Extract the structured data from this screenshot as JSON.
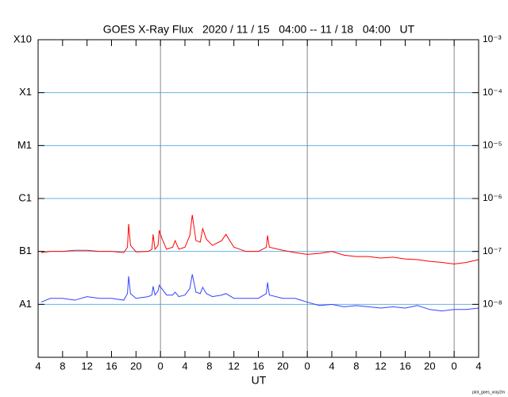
{
  "chart_data": {
    "type": "line",
    "title": "GOES X-Ray Flux   2020 / 11 / 15   04:00 -- 11 / 18   04:00   UT",
    "xlabel": "UT",
    "credit": "plot_goes_xray2m",
    "yscale": "log",
    "grid": true,
    "xlim": [
      0,
      72
    ],
    "xticks": [
      {
        "value": 0,
        "label": "4"
      },
      {
        "value": 4,
        "label": "8"
      },
      {
        "value": 8,
        "label": "12"
      },
      {
        "value": 12,
        "label": "16"
      },
      {
        "value": 16,
        "label": "20"
      },
      {
        "value": 20,
        "label": "0"
      },
      {
        "value": 24,
        "label": "4"
      },
      {
        "value": 28,
        "label": "8"
      },
      {
        "value": 32,
        "label": "12"
      },
      {
        "value": 36,
        "label": "16"
      },
      {
        "value": 40,
        "label": "20"
      },
      {
        "value": 44,
        "label": "0"
      },
      {
        "value": 48,
        "label": "4"
      },
      {
        "value": 52,
        "label": "8"
      },
      {
        "value": 56,
        "label": "12"
      },
      {
        "value": 60,
        "label": "16"
      },
      {
        "value": 64,
        "label": "20"
      },
      {
        "value": 68,
        "label": "0"
      },
      {
        "value": 72,
        "label": "4"
      }
    ],
    "ylim": [
      1e-09,
      0.001
    ],
    "yticks": [
      {
        "value": 0.001,
        "label": "X10"
      },
      {
        "value": 0.0001,
        "label": "X1"
      },
      {
        "value": 1e-05,
        "label": "M1"
      },
      {
        "value": 1e-06,
        "label": "C1"
      },
      {
        "value": 1e-07,
        "label": "B1"
      },
      {
        "value": 1e-08,
        "label": "A1"
      }
    ],
    "y2lim": [
      1e-09,
      0.001
    ],
    "y2ticks": [
      {
        "value": 0.001,
        "label": "10⁻³"
      },
      {
        "value": 0.0001,
        "label": "10⁻⁴"
      },
      {
        "value": 1e-05,
        "label": "10⁻⁵"
      },
      {
        "value": 1e-06,
        "label": "10⁻⁶"
      },
      {
        "value": 1e-07,
        "label": "10⁻⁷"
      },
      {
        "value": 1e-08,
        "label": "10⁻⁸"
      }
    ],
    "x": [
      0.5,
      2,
      4,
      6,
      8,
      10,
      12,
      14,
      14.6,
      14.8,
      15.1,
      16,
      18,
      18.6,
      18.8,
      19.1,
      19.6,
      19.8,
      20.2,
      21,
      22,
      22.4,
      23,
      24,
      24.8,
      25.2,
      25.8,
      26.5,
      26.9,
      27.5,
      28.5,
      30,
      30.7,
      32,
      34,
      36,
      37.3,
      37.5,
      37.8,
      40,
      42,
      44,
      46,
      48,
      50,
      52,
      54,
      56,
      58,
      60,
      62,
      64,
      66,
      68,
      70,
      72
    ],
    "series": [
      {
        "color": "#ff0000",
        "values": [
          9.5e-08,
          1e-07,
          1e-07,
          1.05e-07,
          1.05e-07,
          1e-07,
          1e-07,
          9.5e-08,
          1.2e-07,
          3.3e-07,
          1.3e-07,
          9.8e-08,
          1e-07,
          1.1e-07,
          2.1e-07,
          1.1e-07,
          1.3e-07,
          2.5e-07,
          1.8e-07,
          1.1e-07,
          1.2e-07,
          1.6e-07,
          1.1e-07,
          1.2e-07,
          2e-07,
          4.9e-07,
          1.6e-07,
          1.5e-07,
          2.7e-07,
          1.7e-07,
          1.3e-07,
          1.6e-07,
          2.1e-07,
          1.2e-07,
          1e-07,
          1e-07,
          1.2e-07,
          2e-07,
          1.2e-07,
          1.05e-07,
          9.5e-08,
          8.8e-08,
          9.2e-08,
          1e-07,
          8.5e-08,
          8e-08,
          8e-08,
          7.5e-08,
          7.8e-08,
          7.2e-08,
          7e-08,
          6.5e-08,
          6.2e-08,
          5.8e-08,
          6.2e-08,
          7e-08
        ]
      },
      {
        "color": "#3344ff",
        "values": [
          1.1e-08,
          1.3e-08,
          1.3e-08,
          1.2e-08,
          1.4e-08,
          1.3e-08,
          1.3e-08,
          1.2e-08,
          1.6e-08,
          3.4e-08,
          1.6e-08,
          1.3e-08,
          1.4e-08,
          1.5e-08,
          2.2e-08,
          1.5e-08,
          1.8e-08,
          2.3e-08,
          2e-08,
          1.5e-08,
          1.5e-08,
          1.7e-08,
          1.4e-08,
          1.5e-08,
          2e-08,
          3.7e-08,
          1.7e-08,
          1.6e-08,
          2.1e-08,
          1.6e-08,
          1.4e-08,
          1.5e-08,
          1.6e-08,
          1.3e-08,
          1.3e-08,
          1.3e-08,
          1.6e-08,
          2.6e-08,
          1.5e-08,
          1.3e-08,
          1.3e-08,
          1.1e-08,
          9.5e-09,
          1e-08,
          9e-09,
          9.5e-09,
          9e-09,
          8.5e-09,
          9e-09,
          8.5e-09,
          9.5e-09,
          8e-09,
          7.5e-09,
          8e-09,
          8e-09,
          8.5e-09
        ]
      }
    ]
  }
}
